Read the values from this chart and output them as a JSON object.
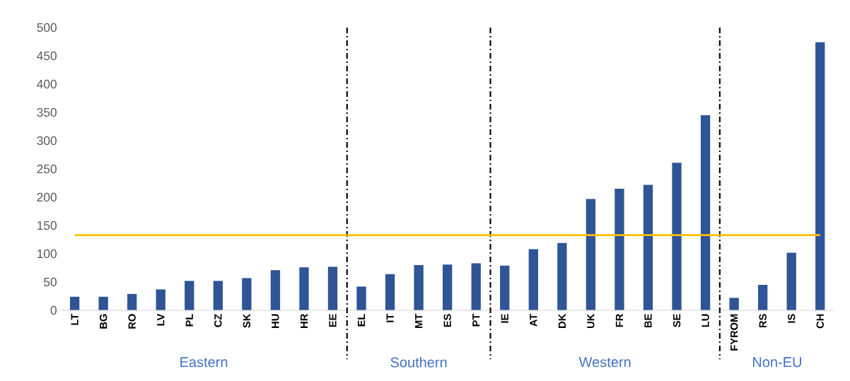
{
  "chart_data": {
    "type": "bar",
    "categories": [
      "LT",
      "BG",
      "RO",
      "LV",
      "PL",
      "CZ",
      "SK",
      "HU",
      "HR",
      "EE",
      "EL",
      "IT",
      "MT",
      "ES",
      "PT",
      "IE",
      "AT",
      "DK",
      "UK",
      "FR",
      "BE",
      "SE",
      "LU",
      "FYROM",
      "RS",
      "IS",
      "CH"
    ],
    "values": [
      24,
      24,
      29,
      37,
      52,
      52,
      57,
      71,
      76,
      77,
      42,
      64,
      80,
      81,
      83,
      79,
      108,
      119,
      197,
      215,
      222,
      261,
      345,
      22,
      45,
      102,
      474
    ],
    "color": "#2f5597",
    "ylim": [
      0,
      500
    ],
    "yticks": [
      0,
      50,
      100,
      150,
      200,
      250,
      300,
      350,
      400,
      450,
      500
    ],
    "grid": false,
    "ref_lines": [
      {
        "axis": "y",
        "value": 133,
        "color": "#ffc000",
        "line_style": "solid"
      }
    ],
    "annotations": [
      "Eastern",
      "Southern",
      "Western",
      "Non-EU"
    ]
  }
}
